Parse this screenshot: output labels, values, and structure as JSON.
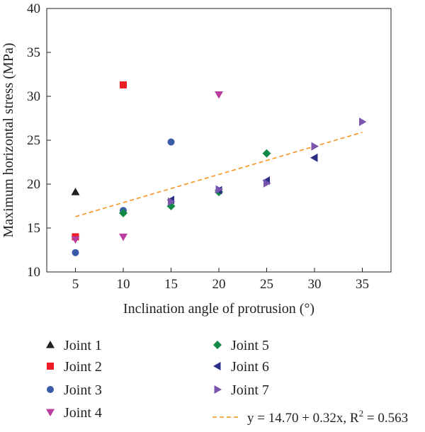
{
  "chart_data": {
    "type": "scatter",
    "xlabel": "Inclination angle of protrusion (°)",
    "ylabel": "Maximum horizontal stress (MPa)",
    "xlim": [
      2,
      38
    ],
    "ylim": [
      10,
      40
    ],
    "xticks": [
      5,
      10,
      15,
      20,
      25,
      30,
      35
    ],
    "yticks": [
      10,
      15,
      20,
      25,
      30,
      35,
      40
    ],
    "grid": false,
    "legend_position": "bottom",
    "series": [
      {
        "name": "Joint 1",
        "marker": "triangle-up",
        "color": "#231f20",
        "points": [
          [
            5,
            19.1
          ]
        ]
      },
      {
        "name": "Joint 2",
        "marker": "square",
        "color": "#ed1c24",
        "points": [
          [
            5,
            14.0
          ],
          [
            10,
            31.3
          ]
        ]
      },
      {
        "name": "Joint 3",
        "marker": "circle",
        "color": "#3a5ca8",
        "points": [
          [
            5,
            12.2
          ],
          [
            10,
            17.0
          ],
          [
            15,
            24.8
          ]
        ]
      },
      {
        "name": "Joint 4",
        "marker": "triangle-down",
        "color": "#b83fa0",
        "points": [
          [
            5,
            13.7
          ],
          [
            10,
            14.0
          ],
          [
            20,
            30.2
          ]
        ]
      },
      {
        "name": "Joint 5",
        "marker": "diamond",
        "color": "#128a45",
        "points": [
          [
            10,
            16.7
          ],
          [
            15,
            17.5
          ],
          [
            20,
            19.1
          ],
          [
            25,
            23.5
          ]
        ]
      },
      {
        "name": "Joint 6",
        "marker": "triangle-left",
        "color": "#2b2f86",
        "points": [
          [
            15,
            18.2
          ],
          [
            20,
            19.3
          ],
          [
            25,
            20.4
          ],
          [
            30,
            23.0
          ]
        ]
      },
      {
        "name": "Joint 7",
        "marker": "triangle-right",
        "color": "#7a55b0",
        "points": [
          [
            15,
            18.0
          ],
          [
            20,
            19.4
          ],
          [
            25,
            20.1
          ],
          [
            30,
            24.3
          ],
          [
            35,
            27.1
          ]
        ]
      }
    ],
    "fit": {
      "label": "y = 14.70 + 0.32x, R",
      "superscript": "2",
      "label_tail": " = 0.563",
      "intercept": 14.7,
      "slope": 0.32,
      "x_range": [
        5,
        35
      ],
      "color": "#f7941d",
      "style": "dashed"
    }
  }
}
